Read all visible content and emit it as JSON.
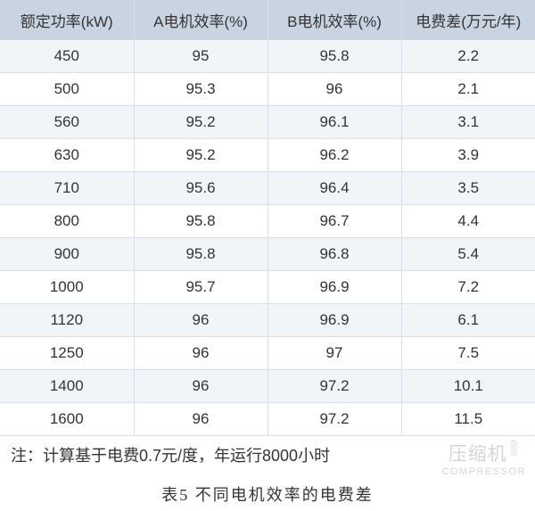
{
  "table": {
    "type": "table",
    "columns": [
      "额定功率(kW)",
      "A电机效率(%)",
      "B电机效率(%)",
      "电费差(万元/年)"
    ],
    "rows": [
      [
        "450",
        "95",
        "95.8",
        "2.2"
      ],
      [
        "500",
        "95.3",
        "96",
        "2.1"
      ],
      [
        "560",
        "95.2",
        "96.1",
        "3.1"
      ],
      [
        "630",
        "95.2",
        "96.2",
        "3.9"
      ],
      [
        "710",
        "95.6",
        "96.4",
        "3.5"
      ],
      [
        "800",
        "95.8",
        "96.7",
        "4.4"
      ],
      [
        "900",
        "95.8",
        "96.8",
        "5.4"
      ],
      [
        "1000",
        "95.7",
        "96.9",
        "7.2"
      ],
      [
        "1120",
        "96",
        "96.9",
        "6.1"
      ],
      [
        "1250",
        "96",
        "97",
        "7.5"
      ],
      [
        "1400",
        "96",
        "97.2",
        "10.1"
      ],
      [
        "1600",
        "96",
        "97.2",
        "11.5"
      ]
    ],
    "header_bg": "#c8d4e2",
    "row_odd_bg": "#f2f5f8",
    "row_even_bg": "#ffffff",
    "border_color": "#d8dfe8",
    "text_color": "#333333",
    "font_size": 17
  },
  "footnote": "注：计算基于电费0.7元/度，年运行8000小时",
  "caption": "表5  不同电机效率的电费差",
  "watermark": {
    "cn": "压缩机",
    "sub": "杂志",
    "en": "COMPRESSOR"
  }
}
